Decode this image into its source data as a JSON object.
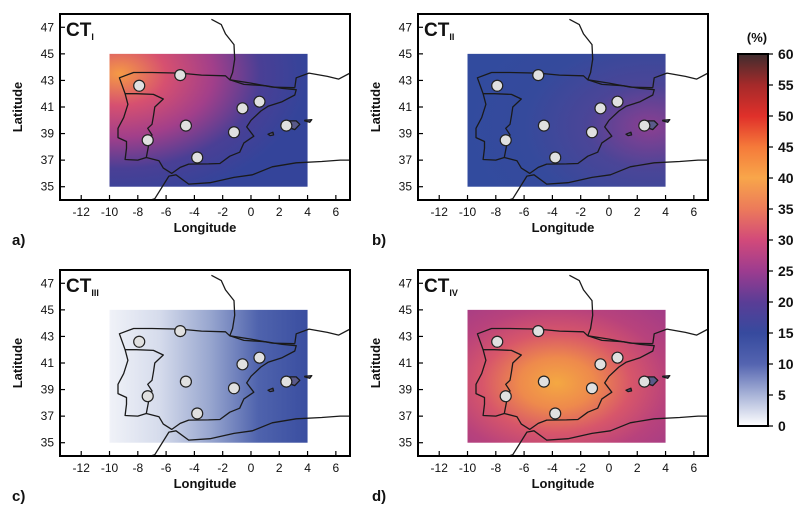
{
  "panels": [
    {
      "id": "a",
      "letter": "a)",
      "title_main": "CT",
      "title_sub": "I",
      "xlabel": "Longitude",
      "ylabel": "Latitude",
      "xticks": [
        "-12",
        "-10",
        "-8",
        "-6",
        "-4",
        "-2",
        "0",
        "2",
        "4",
        "6"
      ],
      "yticks": [
        "47",
        "45",
        "43",
        "41",
        "39",
        "37",
        "35"
      ],
      "fill": {
        "type": "radial",
        "center": "left",
        "stops": [
          "#f59a45",
          "#d65070",
          "#a23f8a",
          "#4a3f95",
          "#34449a"
        ]
      }
    },
    {
      "id": "b",
      "letter": "b)",
      "title_main": "CT",
      "title_sub": "II",
      "xlabel": "Longitude",
      "ylabel": "Latitude",
      "xticks": [
        "-12",
        "-10",
        "-8",
        "-6",
        "-4",
        "-2",
        "0",
        "2",
        "4",
        "6"
      ],
      "yticks": [
        "47",
        "45",
        "43",
        "41",
        "39",
        "37",
        "35"
      ],
      "fill": {
        "type": "radial",
        "center": "right",
        "stops": [
          "#8b3f91",
          "#4b4597",
          "#354a9c",
          "#324b9e"
        ]
      }
    },
    {
      "id": "c",
      "letter": "c)",
      "title_main": "CT",
      "title_sub": "III",
      "xlabel": "Longitude",
      "ylabel": "Latitude",
      "xticks": [
        "-12",
        "-10",
        "-8",
        "-6",
        "-4",
        "-2",
        "0",
        "2",
        "4",
        "6"
      ],
      "yticks": [
        "47",
        "45",
        "43",
        "41",
        "39",
        "37",
        "35"
      ],
      "fill": {
        "type": "linear",
        "stops": [
          "#f0f2f8",
          "#d6dcec",
          "#9aa8d0",
          "#4f63ad",
          "#3a4ea0"
        ]
      }
    },
    {
      "id": "d",
      "letter": "d)",
      "title_main": "CT",
      "title_sub": "IV",
      "xlabel": "Longitude",
      "ylabel": "Latitude",
      "xticks": [
        "-12",
        "-10",
        "-8",
        "-6",
        "-4",
        "-2",
        "0",
        "2",
        "4",
        "6"
      ],
      "yticks": [
        "47",
        "45",
        "43",
        "41",
        "39",
        "37",
        "35"
      ],
      "fill": {
        "type": "radial",
        "center": "middle",
        "stops": [
          "#f4a842",
          "#ee8a4c",
          "#d7566a",
          "#b8427c",
          "#a53d86"
        ]
      }
    }
  ],
  "stations": [
    {
      "lon": -7.9,
      "lat": 42.6
    },
    {
      "lon": -5.0,
      "lat": 43.4
    },
    {
      "lon": -7.3,
      "lat": 38.5
    },
    {
      "lon": -4.6,
      "lat": 39.6
    },
    {
      "lon": -3.8,
      "lat": 37.2
    },
    {
      "lon": -0.6,
      "lat": 40.9
    },
    {
      "lon": 0.6,
      "lat": 41.4
    },
    {
      "lon": -1.2,
      "lat": 39.1
    },
    {
      "lon": 2.5,
      "lat": 39.6
    }
  ],
  "colorbar": {
    "unit": "(%)",
    "ticks": [
      "60",
      "55",
      "50",
      "45",
      "40",
      "35",
      "30",
      "25",
      "20",
      "15",
      "10",
      "5",
      "0"
    ],
    "stops": [
      "#3f2d2e",
      "#a52a2a",
      "#e0302a",
      "#f57a3a",
      "#f8a64a",
      "#ec7a5a",
      "#d24a7a",
      "#9d3c8f",
      "#5a3d96",
      "#364a9e",
      "#5464b0",
      "#a9b4d8",
      "#ffffff"
    ]
  }
}
